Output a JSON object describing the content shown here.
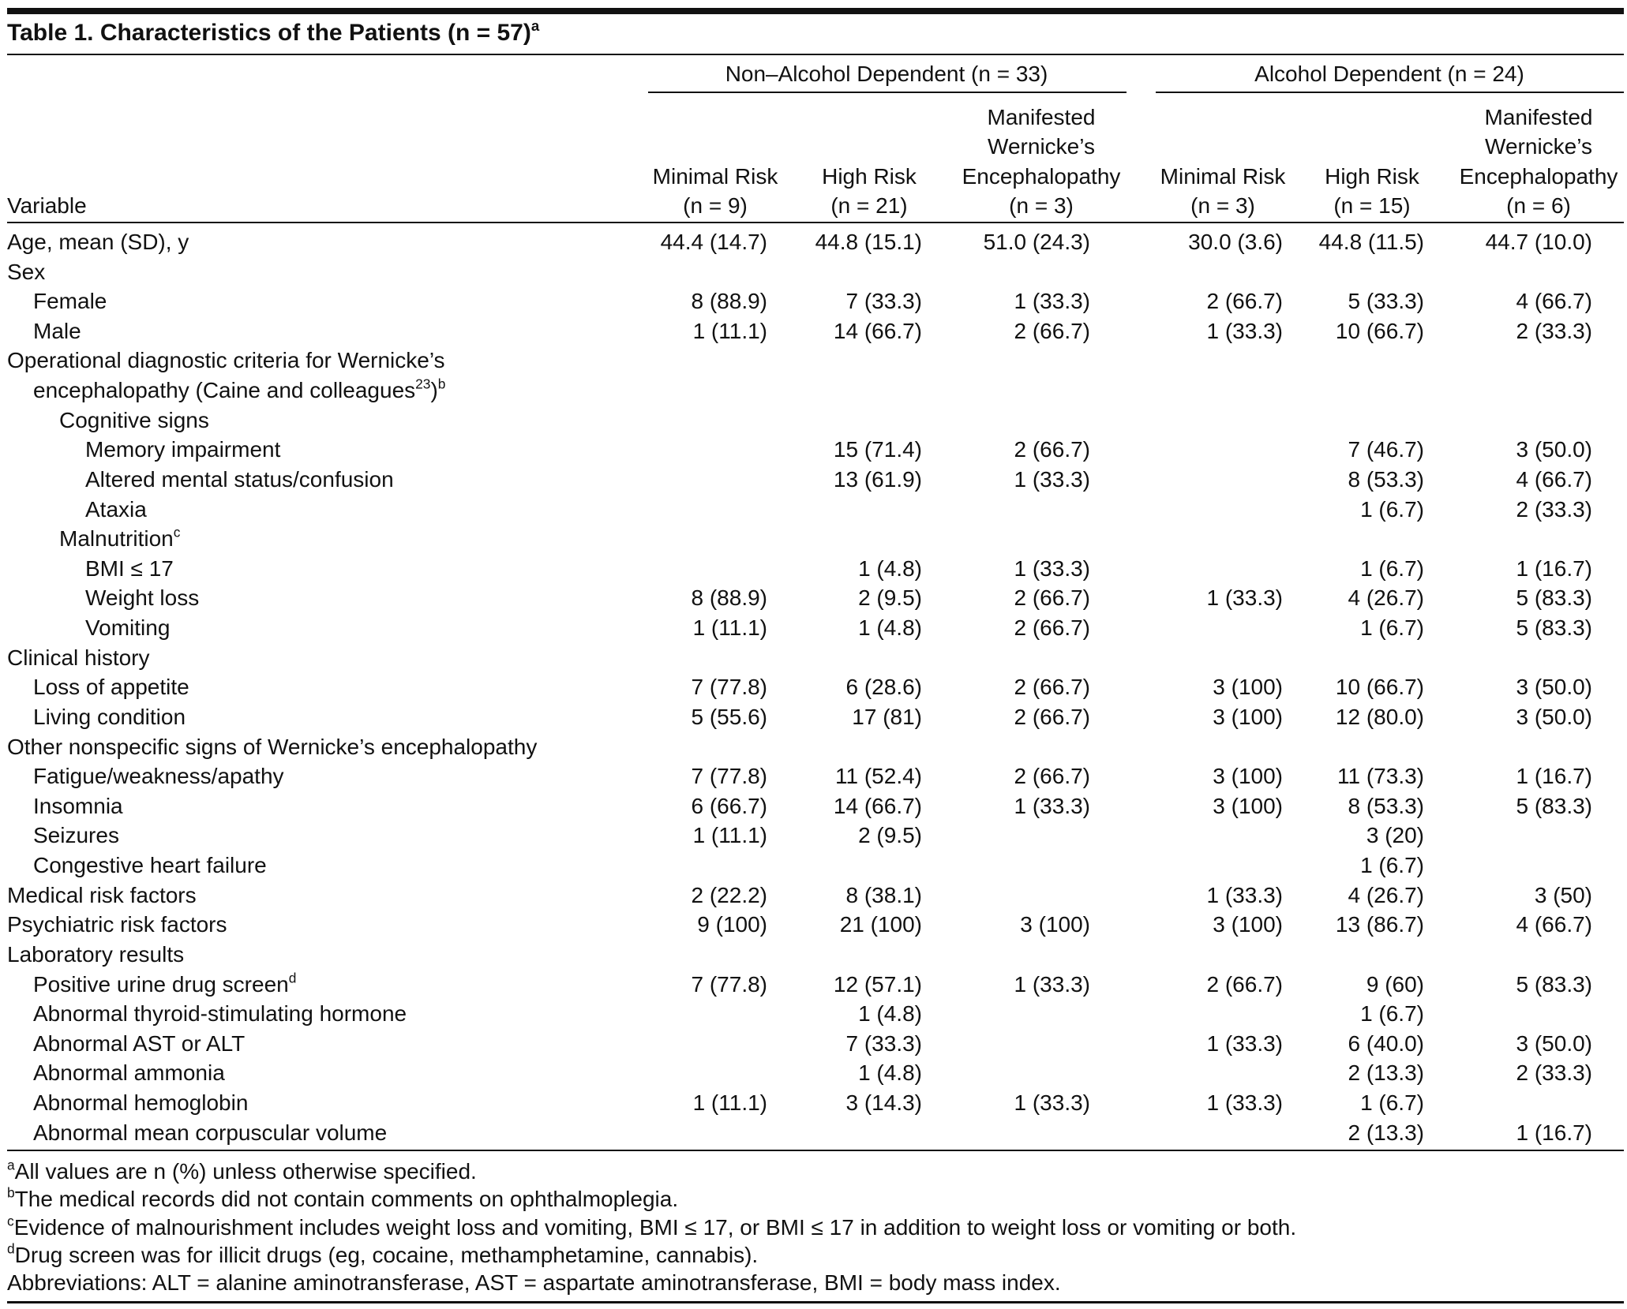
{
  "title": [
    "Table 1. Characteristics of the Patients (n = 57)",
    {
      "sup": "a"
    }
  ],
  "header": {
    "variable": "Variable",
    "groups": [
      {
        "label": "Non–Alcohol Dependent (n = 33)",
        "columns": [
          [
            "Minimal Risk",
            "(n = 9)"
          ],
          [
            "High Risk",
            "(n = 21)"
          ],
          [
            "Manifested",
            "Wernicke’s",
            "Encephalopathy",
            "(n = 3)"
          ]
        ]
      },
      {
        "label": "Alcohol Dependent (n = 24)",
        "columns": [
          [
            "Minimal Risk",
            "(n = 3)"
          ],
          [
            "High Risk",
            "(n = 15)"
          ],
          [
            "Manifested",
            "Wernicke’s",
            "Encephalopathy",
            "(n = 6)"
          ]
        ]
      }
    ]
  },
  "rows": [
    {
      "label": "Age, mean (SD), y",
      "indent": 0,
      "cells": [
        "44.4 (14.7)",
        "44.8 (15.1)",
        "51.0 (24.3)",
        "30.0 (3.6)",
        "44.8 (11.5)",
        "44.7 (10.0)"
      ]
    },
    {
      "label": "Sex",
      "indent": 0
    },
    {
      "label": "Female",
      "indent": 1,
      "cells": [
        "8 (88.9)",
        "7 (33.3)",
        "1 (33.3)",
        "2 (66.7)",
        "5 (33.3)",
        "4 (66.7)"
      ]
    },
    {
      "label": "Male",
      "indent": 1,
      "cells": [
        "1 (11.1)",
        "14 (66.7)",
        "2 (66.7)",
        "1 (33.3)",
        "10 (66.7)",
        "2 (33.3)"
      ]
    },
    {
      "label": "Operational diagnostic criteria for Wernicke’s",
      "indent": 0
    },
    {
      "label": [
        "encephalopathy (Caine and colleagues",
        {
          "sup": "23"
        },
        ")",
        {
          "sup": "b"
        }
      ],
      "indent": 1
    },
    {
      "label": "Cognitive signs",
      "indent": 2
    },
    {
      "label": "Memory impairment",
      "indent": 3,
      "cells": [
        null,
        "15 (71.4)",
        "2 (66.7)",
        null,
        "7 (46.7)",
        "3 (50.0)"
      ]
    },
    {
      "label": "Altered mental status/confusion",
      "indent": 3,
      "cells": [
        null,
        "13 (61.9)",
        "1 (33.3)",
        null,
        "8 (53.3)",
        "4 (66.7)"
      ]
    },
    {
      "label": "Ataxia",
      "indent": 3,
      "cells": [
        null,
        null,
        null,
        null,
        "1 (6.7)",
        "2 (33.3)"
      ]
    },
    {
      "label": [
        "Malnutrition",
        {
          "sup": "c"
        }
      ],
      "indent": 2
    },
    {
      "label": "BMI ≤ 17",
      "indent": 3,
      "cells": [
        null,
        "1 (4.8)",
        "1 (33.3)",
        null,
        "1 (6.7)",
        "1 (16.7)"
      ]
    },
    {
      "label": "Weight loss",
      "indent": 3,
      "cells": [
        "8 (88.9)",
        "2 (9.5)",
        "2 (66.7)",
        "1 (33.3)",
        "4 (26.7)",
        "5 (83.3)"
      ]
    },
    {
      "label": "Vomiting",
      "indent": 3,
      "cells": [
        "1 (11.1)",
        "1 (4.8)",
        "2 (66.7)",
        null,
        "1 (6.7)",
        "5 (83.3)"
      ]
    },
    {
      "label": "Clinical history",
      "indent": 0
    },
    {
      "label": "Loss of appetite",
      "indent": 1,
      "cells": [
        "7 (77.8)",
        "6 (28.6)",
        "2 (66.7)",
        "3 (100)",
        "10 (66.7)",
        "3 (50.0)"
      ]
    },
    {
      "label": "Living condition",
      "indent": 1,
      "cells": [
        "5 (55.6)",
        "17 (81)",
        "2 (66.7)",
        "3 (100)",
        "12 (80.0)",
        "3 (50.0)"
      ]
    },
    {
      "label": "Other nonspecific signs of Wernicke’s encephalopathy",
      "indent": 0
    },
    {
      "label": "Fatigue/weakness/apathy",
      "indent": 1,
      "cells": [
        "7 (77.8)",
        "11 (52.4)",
        "2 (66.7)",
        "3 (100)",
        "11 (73.3)",
        "1 (16.7)"
      ]
    },
    {
      "label": "Insomnia",
      "indent": 1,
      "cells": [
        "6 (66.7)",
        "14 (66.7)",
        "1 (33.3)",
        "3 (100)",
        "8 (53.3)",
        "5 (83.3)"
      ]
    },
    {
      "label": "Seizures",
      "indent": 1,
      "cells": [
        "1 (11.1)",
        "2 (9.5)",
        null,
        null,
        "3 (20)",
        null
      ]
    },
    {
      "label": "Congestive heart failure",
      "indent": 1,
      "cells": [
        null,
        null,
        null,
        null,
        "1 (6.7)",
        null
      ]
    },
    {
      "label": "Medical risk factors",
      "indent": 0,
      "cells": [
        "2 (22.2)",
        "8 (38.1)",
        null,
        "1 (33.3)",
        "4 (26.7)",
        "3 (50)"
      ]
    },
    {
      "label": "Psychiatric risk factors",
      "indent": 0,
      "cells": [
        "9 (100)",
        "21 (100)",
        "3 (100)",
        "3 (100)",
        "13 (86.7)",
        "4 (66.7)"
      ]
    },
    {
      "label": "Laboratory results",
      "indent": 0
    },
    {
      "label": [
        "Positive urine drug screen",
        {
          "sup": "d"
        }
      ],
      "indent": 1,
      "cells": [
        "7 (77.8)",
        "12 (57.1)",
        "1 (33.3)",
        "2 (66.7)",
        "9 (60)",
        "5 (83.3)"
      ]
    },
    {
      "label": "Abnormal thyroid-stimulating hormone",
      "indent": 1,
      "cells": [
        null,
        "1 (4.8)",
        null,
        null,
        "1 (6.7)",
        null
      ]
    },
    {
      "label": "Abnormal AST or ALT",
      "indent": 1,
      "cells": [
        null,
        "7 (33.3)",
        null,
        "1 (33.3)",
        "6 (40.0)",
        "3 (50.0)"
      ]
    },
    {
      "label": "Abnormal ammonia",
      "indent": 1,
      "cells": [
        null,
        "1 (4.8)",
        null,
        null,
        "2 (13.3)",
        "2 (33.3)"
      ]
    },
    {
      "label": "Abnormal hemoglobin",
      "indent": 1,
      "cells": [
        "1 (11.1)",
        "3 (14.3)",
        "1 (33.3)",
        "1 (33.3)",
        "1 (6.7)",
        null
      ]
    },
    {
      "label": "Abnormal mean corpuscular volume",
      "indent": 1,
      "cells": [
        null,
        null,
        null,
        null,
        "2 (13.3)",
        "1 (16.7)"
      ]
    }
  ],
  "footnotes": [
    [
      {
        "sup": "a"
      },
      "All values are n (%) unless otherwise specified."
    ],
    [
      {
        "sup": "b"
      },
      "The medical records did not contain comments on ophthalmoplegia."
    ],
    [
      {
        "sup": "c"
      },
      "Evidence of malnourishment includes weight loss and vomiting, BMI ≤ 17, or BMI ≤ 17 in addition to weight loss or vomiting or both."
    ],
    [
      {
        "sup": "d"
      },
      "Drug screen was for illicit drugs (eg, cocaine, methamphetamine, cannabis)."
    ],
    [
      "Abbreviations: ALT = alanine aminotransferase, AST = aspartate aminotransferase, BMI = body mass index."
    ]
  ]
}
